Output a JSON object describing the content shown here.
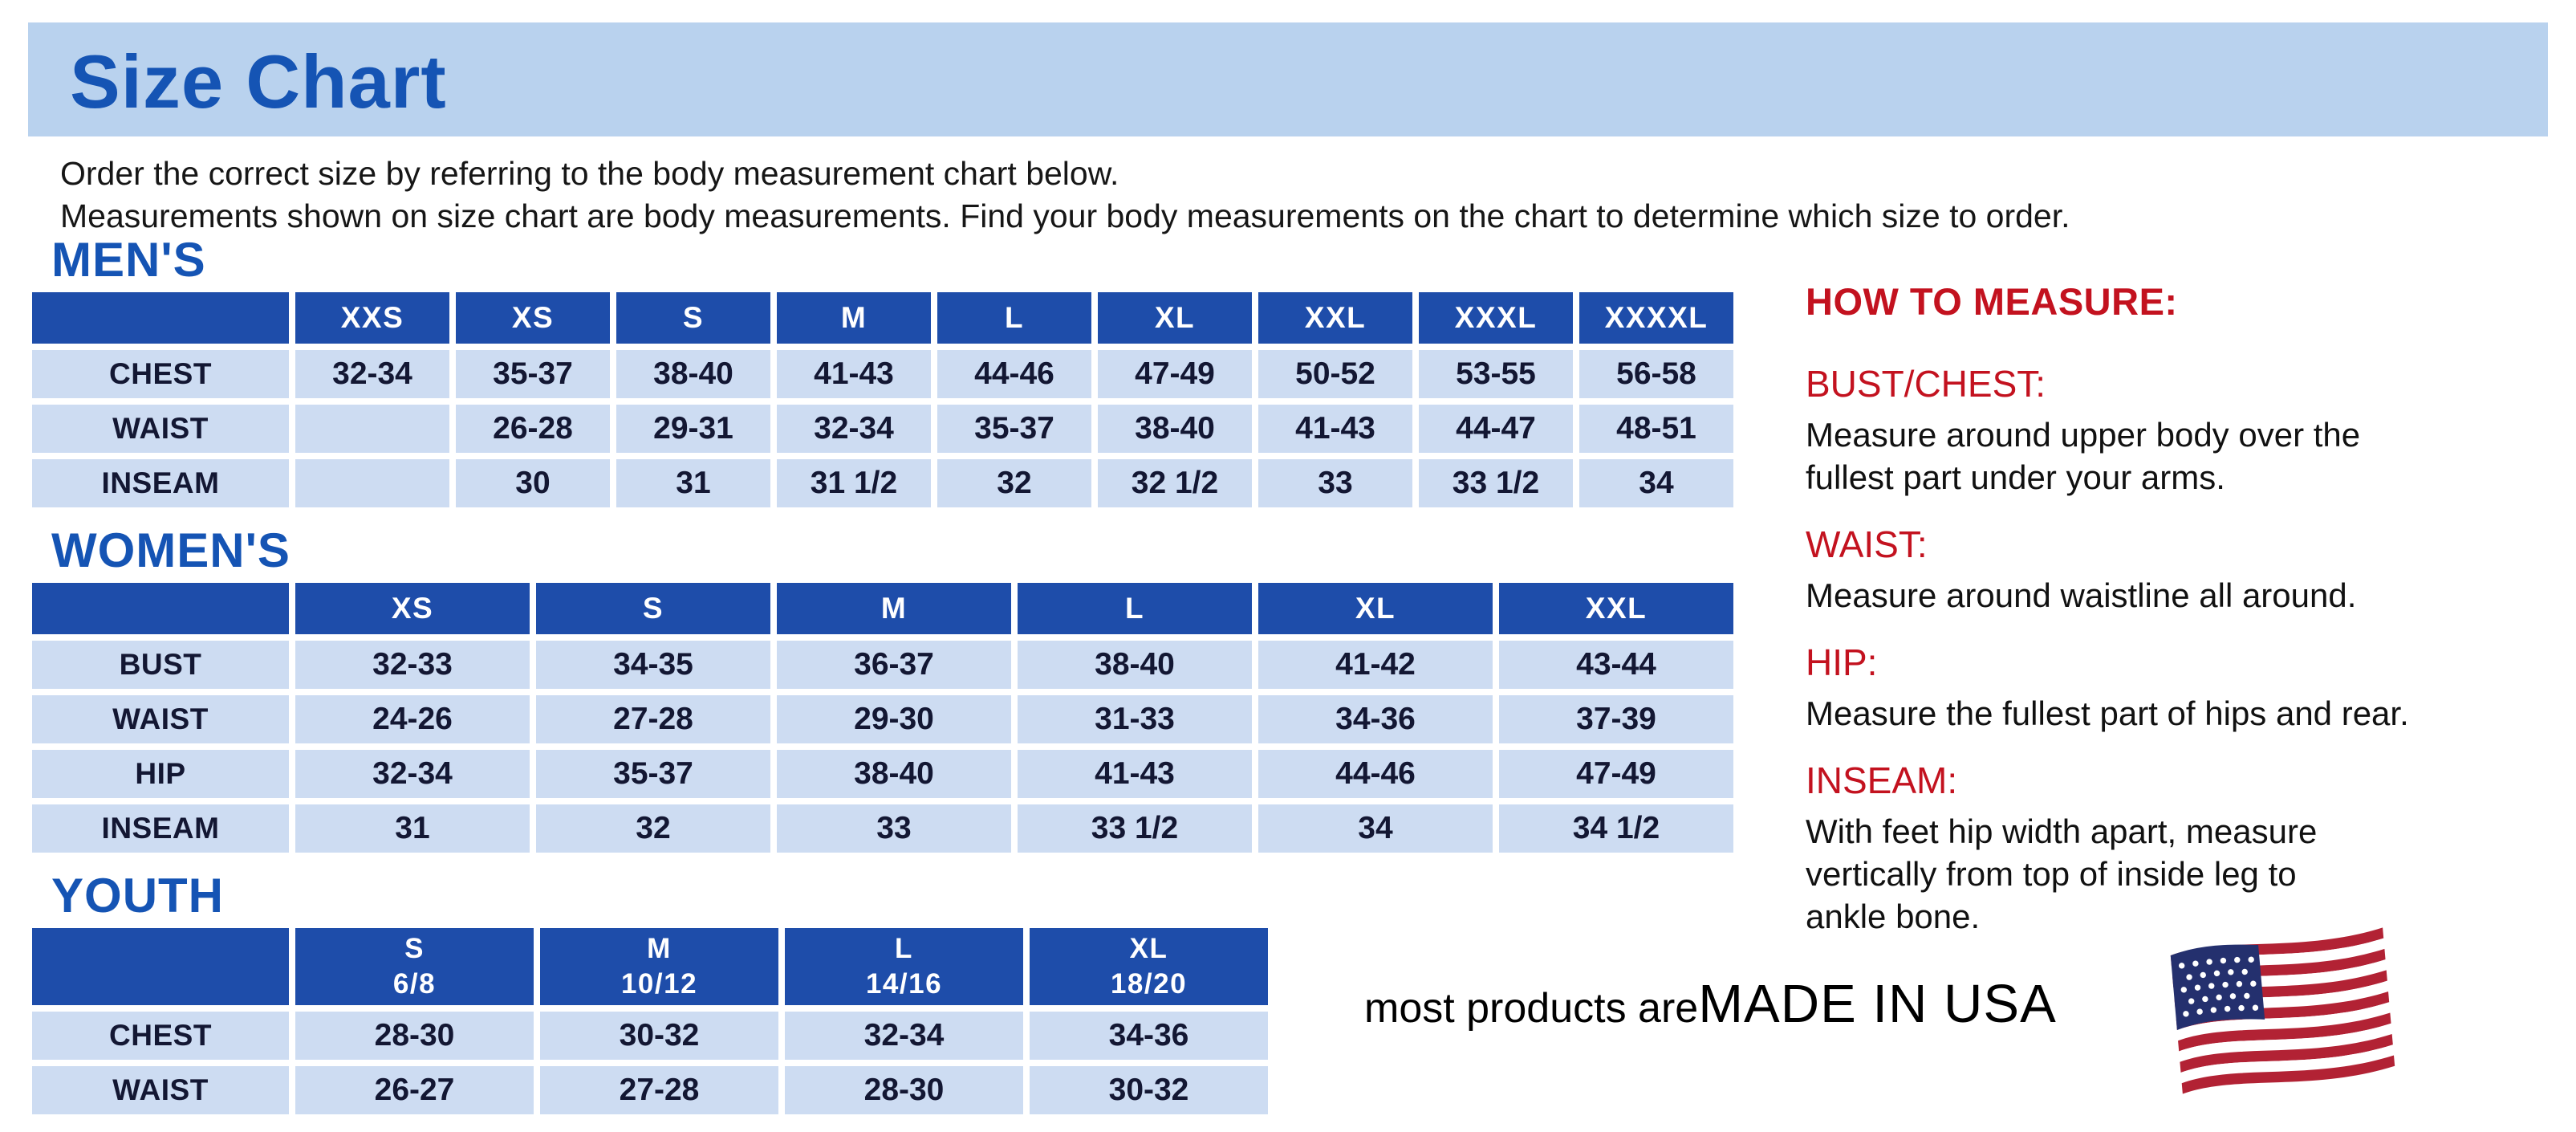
{
  "page": {
    "title": "Size Chart",
    "intro_line1": "Order the correct size by referring to the body measurement chart below.",
    "intro_line2": "Measurements shown on size chart are body measurements.  Find your body measurements on the chart to determine which size to order."
  },
  "colors": {
    "banner_bg": "#b9d2ee",
    "heading_blue": "#1554b4",
    "table_header_blue": "#1e4daa",
    "table_cell_bg": "#cddcf2",
    "heading_red": "#c3121f"
  },
  "tables": [
    {
      "heading": "MEN'S",
      "columns": [
        "",
        "XXS",
        "XS",
        "S",
        "M",
        "L",
        "XL",
        "XXL",
        "XXXL",
        "XXXXL"
      ],
      "rows": [
        {
          "label": "CHEST",
          "values": [
            "32-34",
            "35-37",
            "38-40",
            "41-43",
            "44-46",
            "47-49",
            "50-52",
            "53-55",
            "56-58"
          ]
        },
        {
          "label": "WAIST",
          "values": [
            "",
            "26-28",
            "29-31",
            "32-34",
            "35-37",
            "38-40",
            "41-43",
            "44-47",
            "48-51"
          ]
        },
        {
          "label": "INSEAM",
          "values": [
            "",
            "30",
            "31",
            "31 1/2",
            "32",
            "32 1/2",
            "33",
            "33 1/2",
            "34"
          ]
        }
      ]
    },
    {
      "heading": "WOMEN'S",
      "columns": [
        "",
        "XS",
        "S",
        "M",
        "L",
        "XL",
        "XXL"
      ],
      "rows": [
        {
          "label": "BUST",
          "values": [
            "32-33",
            "34-35",
            "36-37",
            "38-40",
            "41-42",
            "43-44"
          ]
        },
        {
          "label": "WAIST",
          "values": [
            "24-26",
            "27-28",
            "29-30",
            "31-33",
            "34-36",
            "37-39"
          ]
        },
        {
          "label": "HIP",
          "values": [
            "32-34",
            "35-37",
            "38-40",
            "41-43",
            "44-46",
            "47-49"
          ]
        },
        {
          "label": "INSEAM",
          "values": [
            "31",
            "32",
            "33",
            "33 1/2",
            "34",
            "34 1/2"
          ]
        }
      ]
    },
    {
      "heading": "YOUTH",
      "columns": [
        "",
        "S\n6/8",
        "M\n10/12",
        "L\n14/16",
        "XL\n18/20"
      ],
      "rows": [
        {
          "label": "CHEST",
          "values": [
            "28-30",
            "30-32",
            "32-34",
            "34-36"
          ]
        },
        {
          "label": "WAIST",
          "values": [
            "26-27",
            "27-28",
            "28-30",
            "30-32"
          ]
        }
      ]
    }
  ],
  "how_to_measure": {
    "heading": "HOW TO MEASURE:",
    "items": [
      {
        "term": "BUST/CHEST:",
        "description": "Measure around upper body over the\nfullest part under your arms."
      },
      {
        "term": "WAIST:",
        "description": "Measure around waistline all around."
      },
      {
        "term": "HIP:",
        "description": "Measure the fullest part of hips and rear."
      },
      {
        "term": "INSEAM:",
        "description": "With feet hip width apart, measure\nvertically from top of inside leg to\nankle bone."
      }
    ]
  },
  "footer": {
    "prefix": "most products are ",
    "made_in": "MADE IN USA",
    "flag_icon": "usa-flag-icon"
  }
}
